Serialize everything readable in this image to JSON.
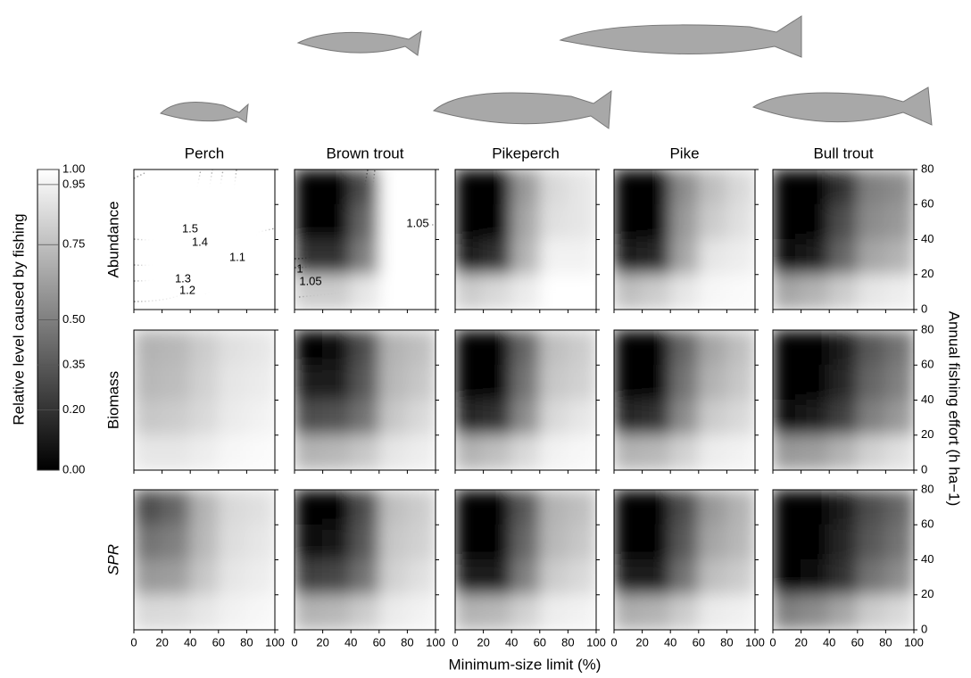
{
  "chart_data": {
    "type": "heatmap",
    "species": [
      "Perch",
      "Brown trout",
      "Pikeperch",
      "Pike",
      "Bull trout"
    ],
    "x_label": "Minimum-size limit (%)",
    "y_label": "Annual fishing effort (h ha−1)",
    "xlim": [
      0,
      100
    ],
    "xticks": [
      0,
      20,
      40,
      60,
      80,
      100
    ],
    "ylim": [
      0,
      80
    ],
    "yticks": [
      0,
      20,
      40,
      60,
      80
    ],
    "colorbar": {
      "label": "Relative level caused by fishing",
      "lim": [
        0,
        1
      ],
      "ticks": [
        {
          "value": 0,
          "label": "0.00"
        },
        {
          "value": 0.2,
          "label": "0.20"
        },
        {
          "value": 0.35,
          "label": "0.35"
        },
        {
          "value": 0.5,
          "label": "0.50"
        },
        {
          "value": 0.75,
          "label": "0.75"
        },
        {
          "value": 0.95,
          "label": "0.95"
        },
        {
          "value": 1,
          "label": "1.00"
        }
      ]
    },
    "rows": [
      {
        "label": "Abundance",
        "panels": [
          {
            "values": [
              [
                1,
                1,
                1,
                1,
                1
              ],
              [
                1,
                1,
                1,
                1,
                1
              ],
              [
                1,
                1,
                1,
                1,
                1
              ],
              [
                1,
                1,
                1,
                1,
                1
              ]
            ],
            "contour_labels": [
              "1.5",
              "1.4",
              "1.3",
              "1.2",
              "1.1"
            ]
          },
          {
            "values": [
              [
                0,
                0,
                0.3,
                1,
                1
              ],
              [
                0,
                0,
                0.4,
                1,
                1
              ],
              [
                0.2,
                0.2,
                0.5,
                1,
                1
              ],
              [
                0.8,
                0.8,
                0.9,
                1,
                1
              ]
            ],
            "contour_labels": [
              "1.05",
              "1",
              "1.05"
            ]
          },
          {
            "values": [
              [
                0,
                0,
                0.6,
                0.85,
                0.9
              ],
              [
                0,
                0,
                0.65,
                0.88,
                0.9
              ],
              [
                0.1,
                0.2,
                0.7,
                0.95,
                0.95
              ],
              [
                0.8,
                0.85,
                0.92,
                1,
                1
              ]
            ]
          },
          {
            "values": [
              [
                0,
                0,
                0.55,
                0.75,
                0.85
              ],
              [
                0,
                0,
                0.6,
                0.8,
                0.88
              ],
              [
                0.1,
                0.15,
                0.65,
                0.9,
                0.93
              ],
              [
                0.75,
                0.8,
                0.9,
                0.97,
                0.98
              ]
            ]
          },
          {
            "values": [
              [
                0,
                0,
                0.2,
                0.5,
                0.55
              ],
              [
                0,
                0,
                0.3,
                0.55,
                0.6
              ],
              [
                0.05,
                0.1,
                0.4,
                0.65,
                0.7
              ],
              [
                0.65,
                0.7,
                0.8,
                0.9,
                0.93
              ]
            ]
          }
        ]
      },
      {
        "label": "Biomass",
        "panels": [
          {
            "values": [
              [
                0.7,
                0.72,
                0.8,
                0.88,
                0.9
              ],
              [
                0.72,
                0.74,
                0.82,
                0.9,
                0.92
              ],
              [
                0.78,
                0.8,
                0.85,
                0.92,
                0.95
              ],
              [
                0.9,
                0.9,
                0.93,
                0.97,
                0.98
              ]
            ]
          },
          {
            "values": [
              [
                0,
                0.05,
                0.3,
                0.7,
                0.75
              ],
              [
                0.1,
                0.12,
                0.35,
                0.72,
                0.78
              ],
              [
                0.3,
                0.32,
                0.45,
                0.78,
                0.85
              ],
              [
                0.7,
                0.72,
                0.78,
                0.9,
                0.93
              ]
            ]
          },
          {
            "values": [
              [
                0,
                0,
                0.4,
                0.75,
                0.8
              ],
              [
                0,
                0.02,
                0.45,
                0.78,
                0.82
              ],
              [
                0.15,
                0.2,
                0.55,
                0.85,
                0.9
              ],
              [
                0.7,
                0.75,
                0.85,
                0.95,
                0.97
              ]
            ]
          },
          {
            "values": [
              [
                0,
                0,
                0.4,
                0.65,
                0.75
              ],
              [
                0,
                0.02,
                0.45,
                0.7,
                0.78
              ],
              [
                0.15,
                0.2,
                0.55,
                0.8,
                0.85
              ],
              [
                0.7,
                0.72,
                0.82,
                0.93,
                0.95
              ]
            ]
          },
          {
            "values": [
              [
                0,
                0,
                0.1,
                0.35,
                0.45
              ],
              [
                0,
                0,
                0.15,
                0.4,
                0.5
              ],
              [
                0.05,
                0.1,
                0.25,
                0.5,
                0.6
              ],
              [
                0.6,
                0.62,
                0.7,
                0.82,
                0.88
              ]
            ]
          }
        ]
      },
      {
        "label": "SPR",
        "panels": [
          {
            "values": [
              [
                0.3,
                0.4,
                0.7,
                0.85,
                0.88
              ],
              [
                0.45,
                0.5,
                0.72,
                0.87,
                0.9
              ],
              [
                0.6,
                0.62,
                0.78,
                0.9,
                0.93
              ],
              [
                0.85,
                0.86,
                0.9,
                0.95,
                0.97
              ]
            ]
          },
          {
            "values": [
              [
                0,
                0,
                0.3,
                0.75,
                0.8
              ],
              [
                0.05,
                0.08,
                0.35,
                0.78,
                0.82
              ],
              [
                0.25,
                0.28,
                0.45,
                0.82,
                0.88
              ],
              [
                0.7,
                0.72,
                0.8,
                0.92,
                0.95
              ]
            ]
          },
          {
            "values": [
              [
                0,
                0,
                0.35,
                0.7,
                0.75
              ],
              [
                0,
                0,
                0.4,
                0.72,
                0.78
              ],
              [
                0.1,
                0.12,
                0.5,
                0.8,
                0.85
              ],
              [
                0.7,
                0.72,
                0.82,
                0.93,
                0.95
              ]
            ]
          },
          {
            "values": [
              [
                0,
                0,
                0.3,
                0.6,
                0.7
              ],
              [
                0,
                0,
                0.35,
                0.65,
                0.72
              ],
              [
                0.1,
                0.12,
                0.45,
                0.75,
                0.8
              ],
              [
                0.68,
                0.7,
                0.8,
                0.92,
                0.94
              ]
            ]
          },
          {
            "values": [
              [
                0,
                0,
                0.1,
                0.3,
                0.4
              ],
              [
                0,
                0,
                0.15,
                0.35,
                0.45
              ],
              [
                0.02,
                0.05,
                0.2,
                0.45,
                0.55
              ],
              [
                0.5,
                0.55,
                0.65,
                0.8,
                0.85
              ]
            ]
          }
        ]
      }
    ]
  }
}
